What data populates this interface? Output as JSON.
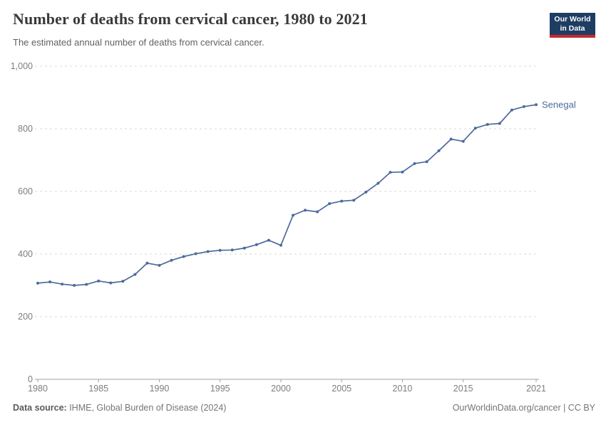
{
  "header": {
    "title": "Number of deaths from cervical cancer, 1980 to 2021",
    "subtitle": "The estimated annual number of deaths from cervical cancer."
  },
  "logo": {
    "line1": "Our World",
    "line2": "in Data",
    "bg_color": "#1d3d63",
    "bar_color": "#c5282f"
  },
  "footer": {
    "source_label": "Data source:",
    "source_text": " IHME, Global Burden of Disease (2024)",
    "credit": "OurWorldinData.org/cancer | CC BY"
  },
  "chart_data": {
    "type": "line",
    "title": "Number of deaths from cervical cancer, 1980 to 2021",
    "xlabel": "",
    "ylabel": "",
    "xlim": [
      1980,
      2021
    ],
    "ylim": [
      0,
      1000
    ],
    "grid": "horizontal-dashed",
    "gridline_color": "#d9d9d9",
    "axis_color": "#a0a0a0",
    "tick_label_color": "#7d7d7d",
    "legend_position": "end-of-line-label",
    "xticks": [
      1980,
      1985,
      1990,
      1995,
      2000,
      2005,
      2010,
      2015,
      2021
    ],
    "yticks": [
      {
        "v": 0,
        "label": "0"
      },
      {
        "v": 200,
        "label": "200"
      },
      {
        "v": 400,
        "label": "400"
      },
      {
        "v": 600,
        "label": "600"
      },
      {
        "v": 800,
        "label": "800"
      },
      {
        "v": 1000,
        "label": "1,000"
      }
    ],
    "series": [
      {
        "name": "Senegal",
        "color": "#4c6a9c",
        "x": [
          1980,
          1981,
          1982,
          1983,
          1984,
          1985,
          1986,
          1987,
          1988,
          1989,
          1990,
          1991,
          1992,
          1993,
          1994,
          1995,
          1996,
          1997,
          1998,
          1999,
          2000,
          2001,
          2002,
          2003,
          2004,
          2005,
          2006,
          2007,
          2008,
          2009,
          2010,
          2011,
          2012,
          2013,
          2014,
          2015,
          2016,
          2017,
          2018,
          2019,
          2020,
          2021
        ],
        "values": [
          307,
          311,
          304,
          300,
          303,
          314,
          308,
          313,
          335,
          371,
          364,
          380,
          392,
          401,
          408,
          412,
          413,
          419,
          430,
          444,
          428,
          524,
          540,
          535,
          561,
          569,
          572,
          598,
          626,
          661,
          662,
          689,
          695,
          730,
          767,
          760,
          802,
          814,
          817,
          860,
          871,
          877
        ]
      }
    ]
  }
}
